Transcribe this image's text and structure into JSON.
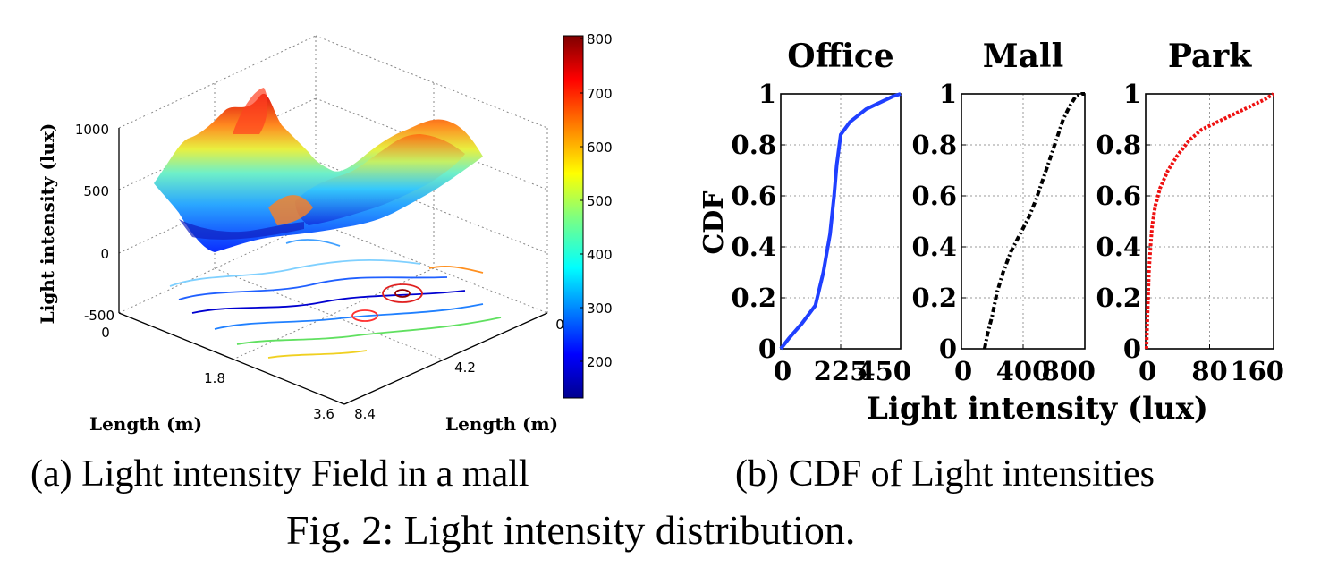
{
  "captions": {
    "a": "(a) Light intensity Field in a mall",
    "b": "(b)  CDF of Light intensities",
    "figure": "Fig. 2: Light intensity distribution."
  },
  "chart_data": [
    {
      "type": "surface",
      "id": "a",
      "zlabel": "Light intensity (lux)",
      "xlabel": "Length (m)",
      "ylabel": "Length (m)",
      "x_ticks": [
        "0",
        "1.8",
        "3.6"
      ],
      "y_ticks": [
        "0",
        "4.2",
        "8.4"
      ],
      "z_ticks": [
        "-500",
        "0",
        "500",
        "1000"
      ],
      "zlim": [
        -500,
        1000
      ],
      "colorbar": {
        "colormap": "jet",
        "range": [
          130,
          800
        ],
        "ticks": [
          "200",
          "300",
          "400",
          "500",
          "600",
          "700",
          "800"
        ]
      },
      "grid": true,
      "contour_projection": true
    },
    {
      "type": "line",
      "id": "b-office",
      "title": "Office",
      "ylabel": "CDF",
      "xlim": [
        0,
        450
      ],
      "ylim": [
        0,
        1
      ],
      "x_ticks": [
        "0",
        "225",
        "450"
      ],
      "y_ticks": [
        "0",
        "0.2",
        "0.4",
        "0.6",
        "0.8",
        "1"
      ],
      "grid": true,
      "series": [
        {
          "color": "#1f3fff",
          "style": "solid",
          "x": [
            0,
            30,
            80,
            130,
            160,
            185,
            200,
            210,
            225,
            260,
            320,
            380,
            420,
            450
          ],
          "y": [
            0,
            0.04,
            0.1,
            0.17,
            0.3,
            0.45,
            0.6,
            0.72,
            0.84,
            0.89,
            0.94,
            0.97,
            0.99,
            1.0
          ]
        }
      ]
    },
    {
      "type": "line",
      "id": "b-mall",
      "title": "Mall",
      "xlim": [
        0,
        800
      ],
      "ylim": [
        0,
        1
      ],
      "x_ticks": [
        "0",
        "400",
        "800"
      ],
      "y_ticks": [
        "0",
        "0.2",
        "0.4",
        "0.6",
        "0.8",
        "1"
      ],
      "grid": true,
      "series": [
        {
          "color": "#000000",
          "style": "dash-dot",
          "x": [
            150,
            170,
            200,
            230,
            270,
            320,
            380,
            440,
            480,
            520,
            560,
            610,
            660,
            700,
            740,
            780,
            800
          ],
          "y": [
            0,
            0.06,
            0.13,
            0.22,
            0.3,
            0.38,
            0.45,
            0.52,
            0.58,
            0.65,
            0.72,
            0.81,
            0.9,
            0.95,
            0.99,
            1.0,
            1.0
          ]
        }
      ]
    },
    {
      "type": "line",
      "id": "b-park",
      "title": "Park",
      "xlim": [
        0,
        160
      ],
      "ylim": [
        0,
        1
      ],
      "x_ticks": [
        "0",
        "80",
        "160"
      ],
      "y_ticks": [
        "0",
        "0.2",
        "0.4",
        "0.6",
        "0.8",
        "1"
      ],
      "grid": true,
      "series": [
        {
          "color": "#ee1111",
          "style": "dotted",
          "x": [
            1,
            2,
            3,
            4,
            6,
            8,
            12,
            18,
            28,
            40,
            55,
            70,
            90,
            110,
            130,
            150,
            160
          ],
          "y": [
            0,
            0.1,
            0.2,
            0.3,
            0.4,
            0.48,
            0.56,
            0.63,
            0.7,
            0.76,
            0.82,
            0.86,
            0.89,
            0.92,
            0.95,
            0.98,
            1.0
          ]
        }
      ]
    }
  ],
  "shared_xlabel": "Light intensity (lux)"
}
